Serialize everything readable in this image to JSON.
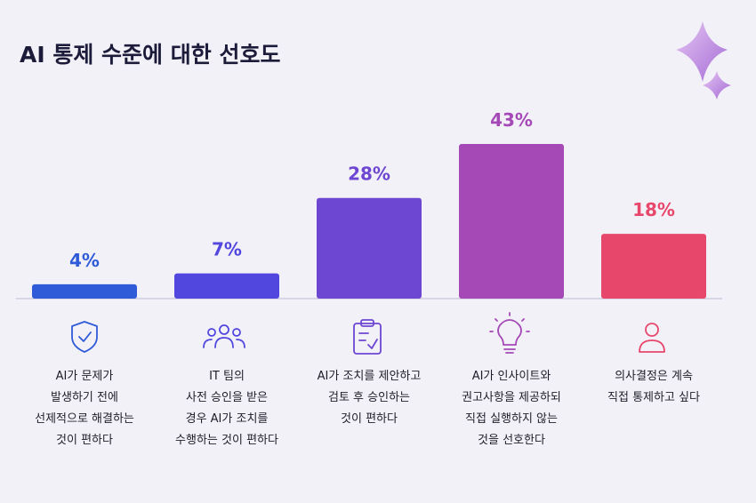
{
  "chart_data": {
    "type": "bar",
    "title": "AI 통제 수준에 대한 선호도",
    "categories": [
      "AI가 문제가\n발생하기 전에\n선제적으로 해결하는\n것이 편하다",
      "IT 팀의\n사전 승인을 받은\n경우 AI가 조치를\n수행하는 것이 편하다",
      "AI가 조치를 제안하고\n검토 후 승인하는\n것이 편하다",
      "AI가 인사이트와\n권고사항을 제공하되\n직접 실행하지 않는\n것을 선호한다",
      "의사결정은 계속\n직접 통제하고 싶다"
    ],
    "values": [
      4,
      7,
      28,
      43,
      18
    ],
    "value_labels": [
      "4%",
      "7%",
      "28%",
      "43%",
      "18%"
    ],
    "colors": [
      "#2f5bd8",
      "#5147de",
      "#6d46d2",
      "#a449b6",
      "#e8476c"
    ]
  }
}
